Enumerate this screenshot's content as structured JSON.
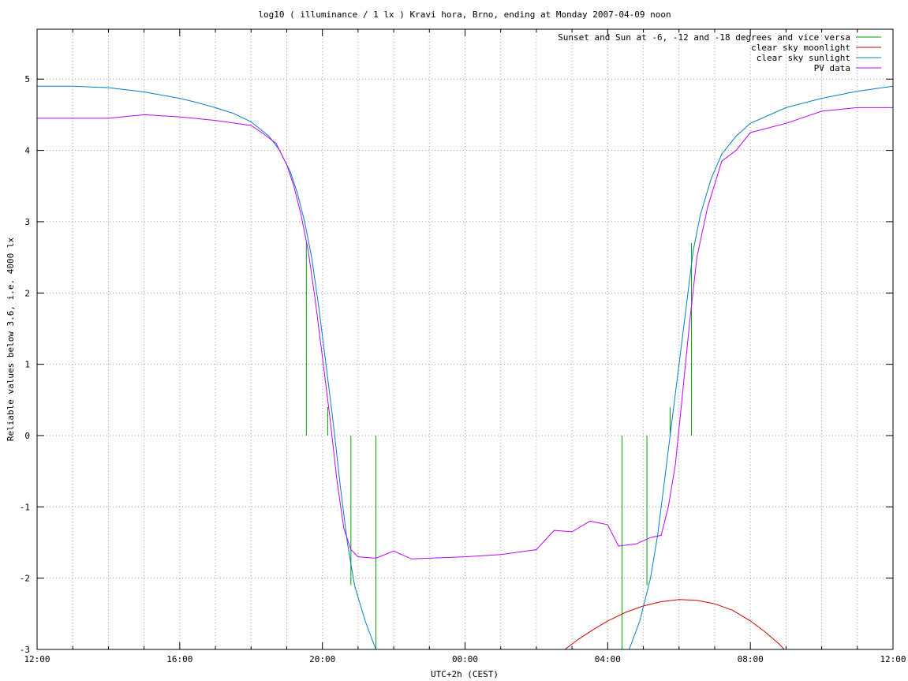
{
  "chart_data": {
    "type": "line",
    "title": "log10 ( illuminance / 1 lx ) Kravi hora, Brno, ending at Monday 2007-04-09 noon",
    "xlabel": "UTC+2h (CEST)",
    "ylabel": "Reliable values below 3.6, i.e. 4000 lx",
    "xlim": [
      0,
      24
    ],
    "ylim": [
      -3,
      5.7
    ],
    "x_unit": "hours since 12:00 (Sunday 2007-04-08)",
    "x_ticks": [
      {
        "value": 0,
        "label": "12:00"
      },
      {
        "value": 4,
        "label": "16:00"
      },
      {
        "value": 8,
        "label": "20:00"
      },
      {
        "value": 12,
        "label": "00:00"
      },
      {
        "value": 16,
        "label": "04:00"
      },
      {
        "value": 20,
        "label": "08:00"
      },
      {
        "value": 24,
        "label": "12:00"
      }
    ],
    "y_ticks": [
      {
        "value": -3,
        "label": "-3"
      },
      {
        "value": -2,
        "label": "-2"
      },
      {
        "value": -1,
        "label": "-1"
      },
      {
        "value": 0,
        "label": "0"
      },
      {
        "value": 1,
        "label": "1"
      },
      {
        "value": 2,
        "label": "2"
      },
      {
        "value": 3,
        "label": "3"
      },
      {
        "value": 4,
        "label": "4"
      },
      {
        "value": 5,
        "label": "5"
      }
    ],
    "grid": true,
    "minor_grid_step_x": 1,
    "legend_position": "top-right",
    "series": [
      {
        "name": "Sunset and Sun at -6, -12 and -18 degrees and vice versa",
        "color": "#00a000",
        "style": "impulses",
        "points": [
          {
            "x": 7.55,
            "y": 2.7
          },
          {
            "x": 8.15,
            "y": 0.4
          },
          {
            "x": 8.8,
            "y": -2.1
          },
          {
            "x": 9.5,
            "y": -3
          },
          {
            "x": 16.4,
            "y": -3
          },
          {
            "x": 17.1,
            "y": -2.1
          },
          {
            "x": 17.75,
            "y": 0.4
          },
          {
            "x": 18.35,
            "y": 2.7
          }
        ]
      },
      {
        "name": "clear sky moonlight",
        "color": "#d00000",
        "style": "line",
        "points": [
          {
            "x": 14.8,
            "y": -3
          },
          {
            "x": 15.2,
            "y": -2.85
          },
          {
            "x": 15.6,
            "y": -2.72
          },
          {
            "x": 16.0,
            "y": -2.6
          },
          {
            "x": 16.5,
            "y": -2.48
          },
          {
            "x": 17.0,
            "y": -2.39
          },
          {
            "x": 17.5,
            "y": -2.33
          },
          {
            "x": 18.0,
            "y": -2.3
          },
          {
            "x": 18.5,
            "y": -2.31
          },
          {
            "x": 19.0,
            "y": -2.36
          },
          {
            "x": 19.5,
            "y": -2.45
          },
          {
            "x": 20.0,
            "y": -2.6
          },
          {
            "x": 20.4,
            "y": -2.75
          },
          {
            "x": 20.8,
            "y": -2.92
          },
          {
            "x": 20.95,
            "y": -3
          }
        ]
      },
      {
        "name": "clear sky sunlight",
        "color": "#0080c0",
        "style": "line",
        "points": [
          {
            "x": 0,
            "y": 4.9
          },
          {
            "x": 1,
            "y": 4.9
          },
          {
            "x": 2,
            "y": 4.88
          },
          {
            "x": 3,
            "y": 4.82
          },
          {
            "x": 4,
            "y": 4.73
          },
          {
            "x": 4.5,
            "y": 4.67
          },
          {
            "x": 5,
            "y": 4.6
          },
          {
            "x": 5.5,
            "y": 4.52
          },
          {
            "x": 6,
            "y": 4.4
          },
          {
            "x": 6.5,
            "y": 4.2
          },
          {
            "x": 6.8,
            "y": 4.0
          },
          {
            "x": 7.1,
            "y": 3.7
          },
          {
            "x": 7.3,
            "y": 3.4
          },
          {
            "x": 7.5,
            "y": 3.0
          },
          {
            "x": 7.7,
            "y": 2.5
          },
          {
            "x": 7.9,
            "y": 1.8
          },
          {
            "x": 8.1,
            "y": 1.0
          },
          {
            "x": 8.3,
            "y": 0.2
          },
          {
            "x": 8.5,
            "y": -0.7
          },
          {
            "x": 8.7,
            "y": -1.5
          },
          {
            "x": 8.9,
            "y": -2.1
          },
          {
            "x": 9.2,
            "y": -2.6
          },
          {
            "x": 9.5,
            "y": -3.0
          },
          {
            "x": 16.6,
            "y": -3.0
          },
          {
            "x": 16.9,
            "y": -2.6
          },
          {
            "x": 17.2,
            "y": -2.0
          },
          {
            "x": 17.4,
            "y": -1.4
          },
          {
            "x": 17.6,
            "y": -0.6
          },
          {
            "x": 17.8,
            "y": 0.2
          },
          {
            "x": 18.0,
            "y": 1.0
          },
          {
            "x": 18.2,
            "y": 1.8
          },
          {
            "x": 18.4,
            "y": 2.6
          },
          {
            "x": 18.6,
            "y": 3.1
          },
          {
            "x": 18.9,
            "y": 3.6
          },
          {
            "x": 19.2,
            "y": 3.95
          },
          {
            "x": 19.6,
            "y": 4.2
          },
          {
            "x": 20,
            "y": 4.38
          },
          {
            "x": 21,
            "y": 4.6
          },
          {
            "x": 22,
            "y": 4.73
          },
          {
            "x": 23,
            "y": 4.83
          },
          {
            "x": 24,
            "y": 4.9
          }
        ]
      },
      {
        "name": "PV data",
        "color": "#c000ff",
        "style": "line",
        "points": [
          {
            "x": 0,
            "y": 4.45
          },
          {
            "x": 1,
            "y": 4.45
          },
          {
            "x": 2,
            "y": 4.45
          },
          {
            "x": 3,
            "y": 4.5
          },
          {
            "x": 4,
            "y": 4.47
          },
          {
            "x": 5,
            "y": 4.42
          },
          {
            "x": 6,
            "y": 4.35
          },
          {
            "x": 6.3,
            "y": 4.25
          },
          {
            "x": 6.7,
            "y": 4.1
          },
          {
            "x": 7,
            "y": 3.8
          },
          {
            "x": 7.2,
            "y": 3.5
          },
          {
            "x": 7.4,
            "y": 3.1
          },
          {
            "x": 7.6,
            "y": 2.6
          },
          {
            "x": 7.8,
            "y": 1.9
          },
          {
            "x": 8.0,
            "y": 1.1
          },
          {
            "x": 8.2,
            "y": 0.3
          },
          {
            "x": 8.4,
            "y": -0.6
          },
          {
            "x": 8.6,
            "y": -1.3
          },
          {
            "x": 8.8,
            "y": -1.6
          },
          {
            "x": 9.0,
            "y": -1.7
          },
          {
            "x": 9.5,
            "y": -1.72
          },
          {
            "x": 10,
            "y": -1.62
          },
          {
            "x": 10.5,
            "y": -1.73
          },
          {
            "x": 11,
            "y": -1.72
          },
          {
            "x": 12,
            "y": -1.7
          },
          {
            "x": 13,
            "y": -1.67
          },
          {
            "x": 14,
            "y": -1.6
          },
          {
            "x": 14.5,
            "y": -1.33
          },
          {
            "x": 15,
            "y": -1.35
          },
          {
            "x": 15.5,
            "y": -1.2
          },
          {
            "x": 16,
            "y": -1.25
          },
          {
            "x": 16.3,
            "y": -1.55
          },
          {
            "x": 16.8,
            "y": -1.52
          },
          {
            "x": 17.2,
            "y": -1.43
          },
          {
            "x": 17.5,
            "y": -1.4
          },
          {
            "x": 17.7,
            "y": -1.0
          },
          {
            "x": 17.9,
            "y": -0.4
          },
          {
            "x": 18.1,
            "y": 0.6
          },
          {
            "x": 18.3,
            "y": 1.6
          },
          {
            "x": 18.5,
            "y": 2.5
          },
          {
            "x": 18.8,
            "y": 3.2
          },
          {
            "x": 19.2,
            "y": 3.85
          },
          {
            "x": 19.6,
            "y": 4.0
          },
          {
            "x": 20,
            "y": 4.25
          },
          {
            "x": 21,
            "y": 4.38
          },
          {
            "x": 22,
            "y": 4.55
          },
          {
            "x": 23,
            "y": 4.6
          },
          {
            "x": 24,
            "y": 4.6
          }
        ]
      }
    ]
  }
}
